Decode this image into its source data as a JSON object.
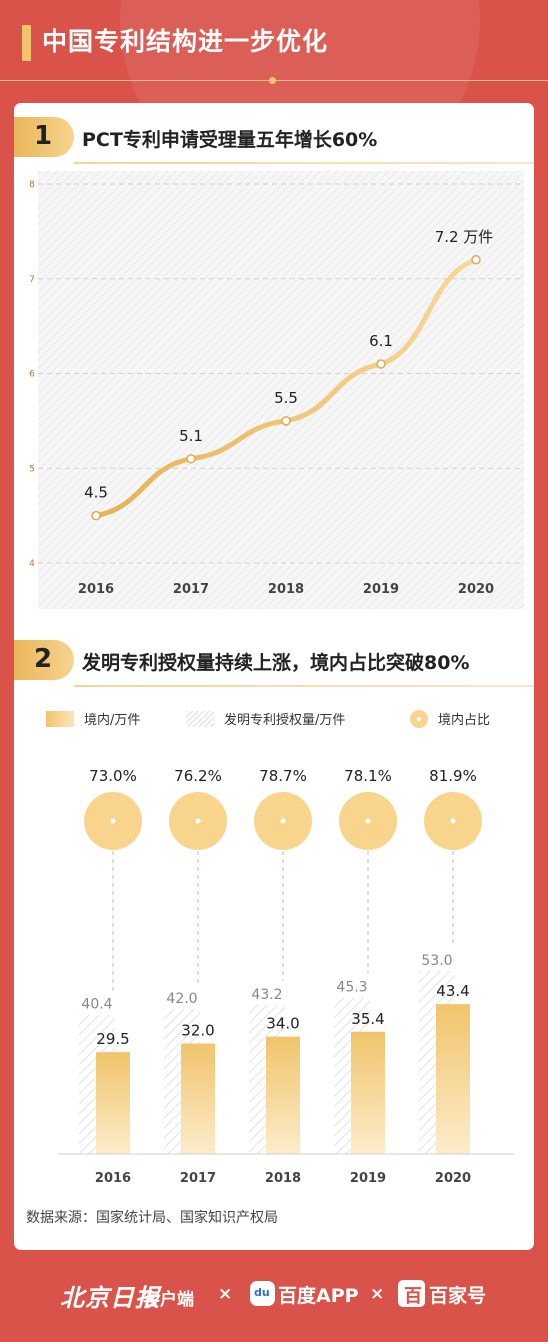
{
  "header": {
    "title": "中国专利结构进一步优化"
  },
  "section1": {
    "number": "1",
    "title": "PCT专利申请受理量五年增长60%"
  },
  "section2": {
    "number": "2",
    "title": "发明专利授权量持续上涨，境内占比突破80%"
  },
  "legend": {
    "domestic": "境内/万件",
    "total": "发明专利授权量/万件",
    "ratio": "境内占比"
  },
  "source": "数据来源：国家统计局、国家知识产权局",
  "footer": {
    "bjrb": "北京日报",
    "client": "客户端",
    "x1": "×",
    "baidu_icon": "du",
    "baidu": "百度APP",
    "x2": "×",
    "bjh_icon": "百",
    "bjh": "百家号"
  },
  "colors": {
    "background": "#d9534a",
    "accent": "#f2c46e",
    "line": "#e9bd66"
  },
  "chart_data": [
    {
      "type": "line",
      "title": "PCT专利申请受理量五年增长60%",
      "x": [
        "2016",
        "2017",
        "2018",
        "2019",
        "2020"
      ],
      "series": [
        {
          "values": [
            4.5,
            5.1,
            5.5,
            6.1,
            7.2
          ]
        }
      ],
      "labels": [
        "4.5",
        "5.1",
        "5.5",
        "6.1",
        "7.2 万件"
      ],
      "yticks": [
        "4",
        "5",
        "6",
        "7",
        "8"
      ],
      "ylim": [
        4,
        8
      ],
      "grid": true
    },
    {
      "type": "bar",
      "title": "发明专利授权量持续上涨，境内占比突破80%",
      "categories": [
        "2016",
        "2017",
        "2018",
        "2019",
        "2020"
      ],
      "series": [
        {
          "name": "境内/万件",
          "values": [
            29.5,
            32.0,
            34.0,
            35.4,
            43.4
          ]
        },
        {
          "name": "发明专利授权量/万件",
          "values": [
            40.4,
            42.0,
            43.2,
            45.3,
            53.0
          ]
        },
        {
          "name": "境内占比",
          "values": [
            73.0,
            76.2,
            78.7,
            78.1,
            81.9
          ],
          "labels": [
            "73.0%",
            "76.2%",
            "78.7%",
            "78.1%",
            "81.9%"
          ]
        }
      ],
      "domestic_labels": [
        "29.5",
        "32.0",
        "34.0",
        "35.4",
        "43.4"
      ],
      "total_labels": [
        "40.4",
        "42.0",
        "43.2",
        "45.3",
        "53.0"
      ],
      "ylim": [
        0,
        60
      ]
    }
  ]
}
